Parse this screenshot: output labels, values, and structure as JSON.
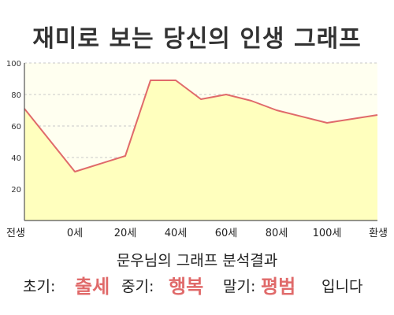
{
  "chart_data": {
    "type": "area",
    "title": "재미로 보는 당신의 인생 그래프",
    "x_labels": [
      "전생",
      "0세",
      "20세",
      "40세",
      "60세",
      "80세",
      "100세",
      "환생"
    ],
    "x": [
      -20,
      0,
      20,
      30,
      40,
      50,
      60,
      70,
      80,
      100,
      120
    ],
    "y": [
      71,
      31,
      41,
      89,
      89,
      77,
      80,
      76,
      70,
      62,
      67
    ],
    "ylim": [
      0,
      100
    ],
    "y_ticks": [
      20,
      40,
      60,
      80,
      100
    ],
    "grid": true,
    "colors": {
      "line": "#e06a6a",
      "fill": "#ffffbe",
      "plot_bg": "#fffff0",
      "grid": "#c8c8c8",
      "axis": "#555555"
    }
  },
  "summary": {
    "heading": "문우님의 그래프 분석결과",
    "early_label": "초기:",
    "early_value": "출세",
    "middle_label": "중기:",
    "middle_value": "행복",
    "late_label": "말기:",
    "late_value": "평범",
    "ending": "입니다"
  }
}
